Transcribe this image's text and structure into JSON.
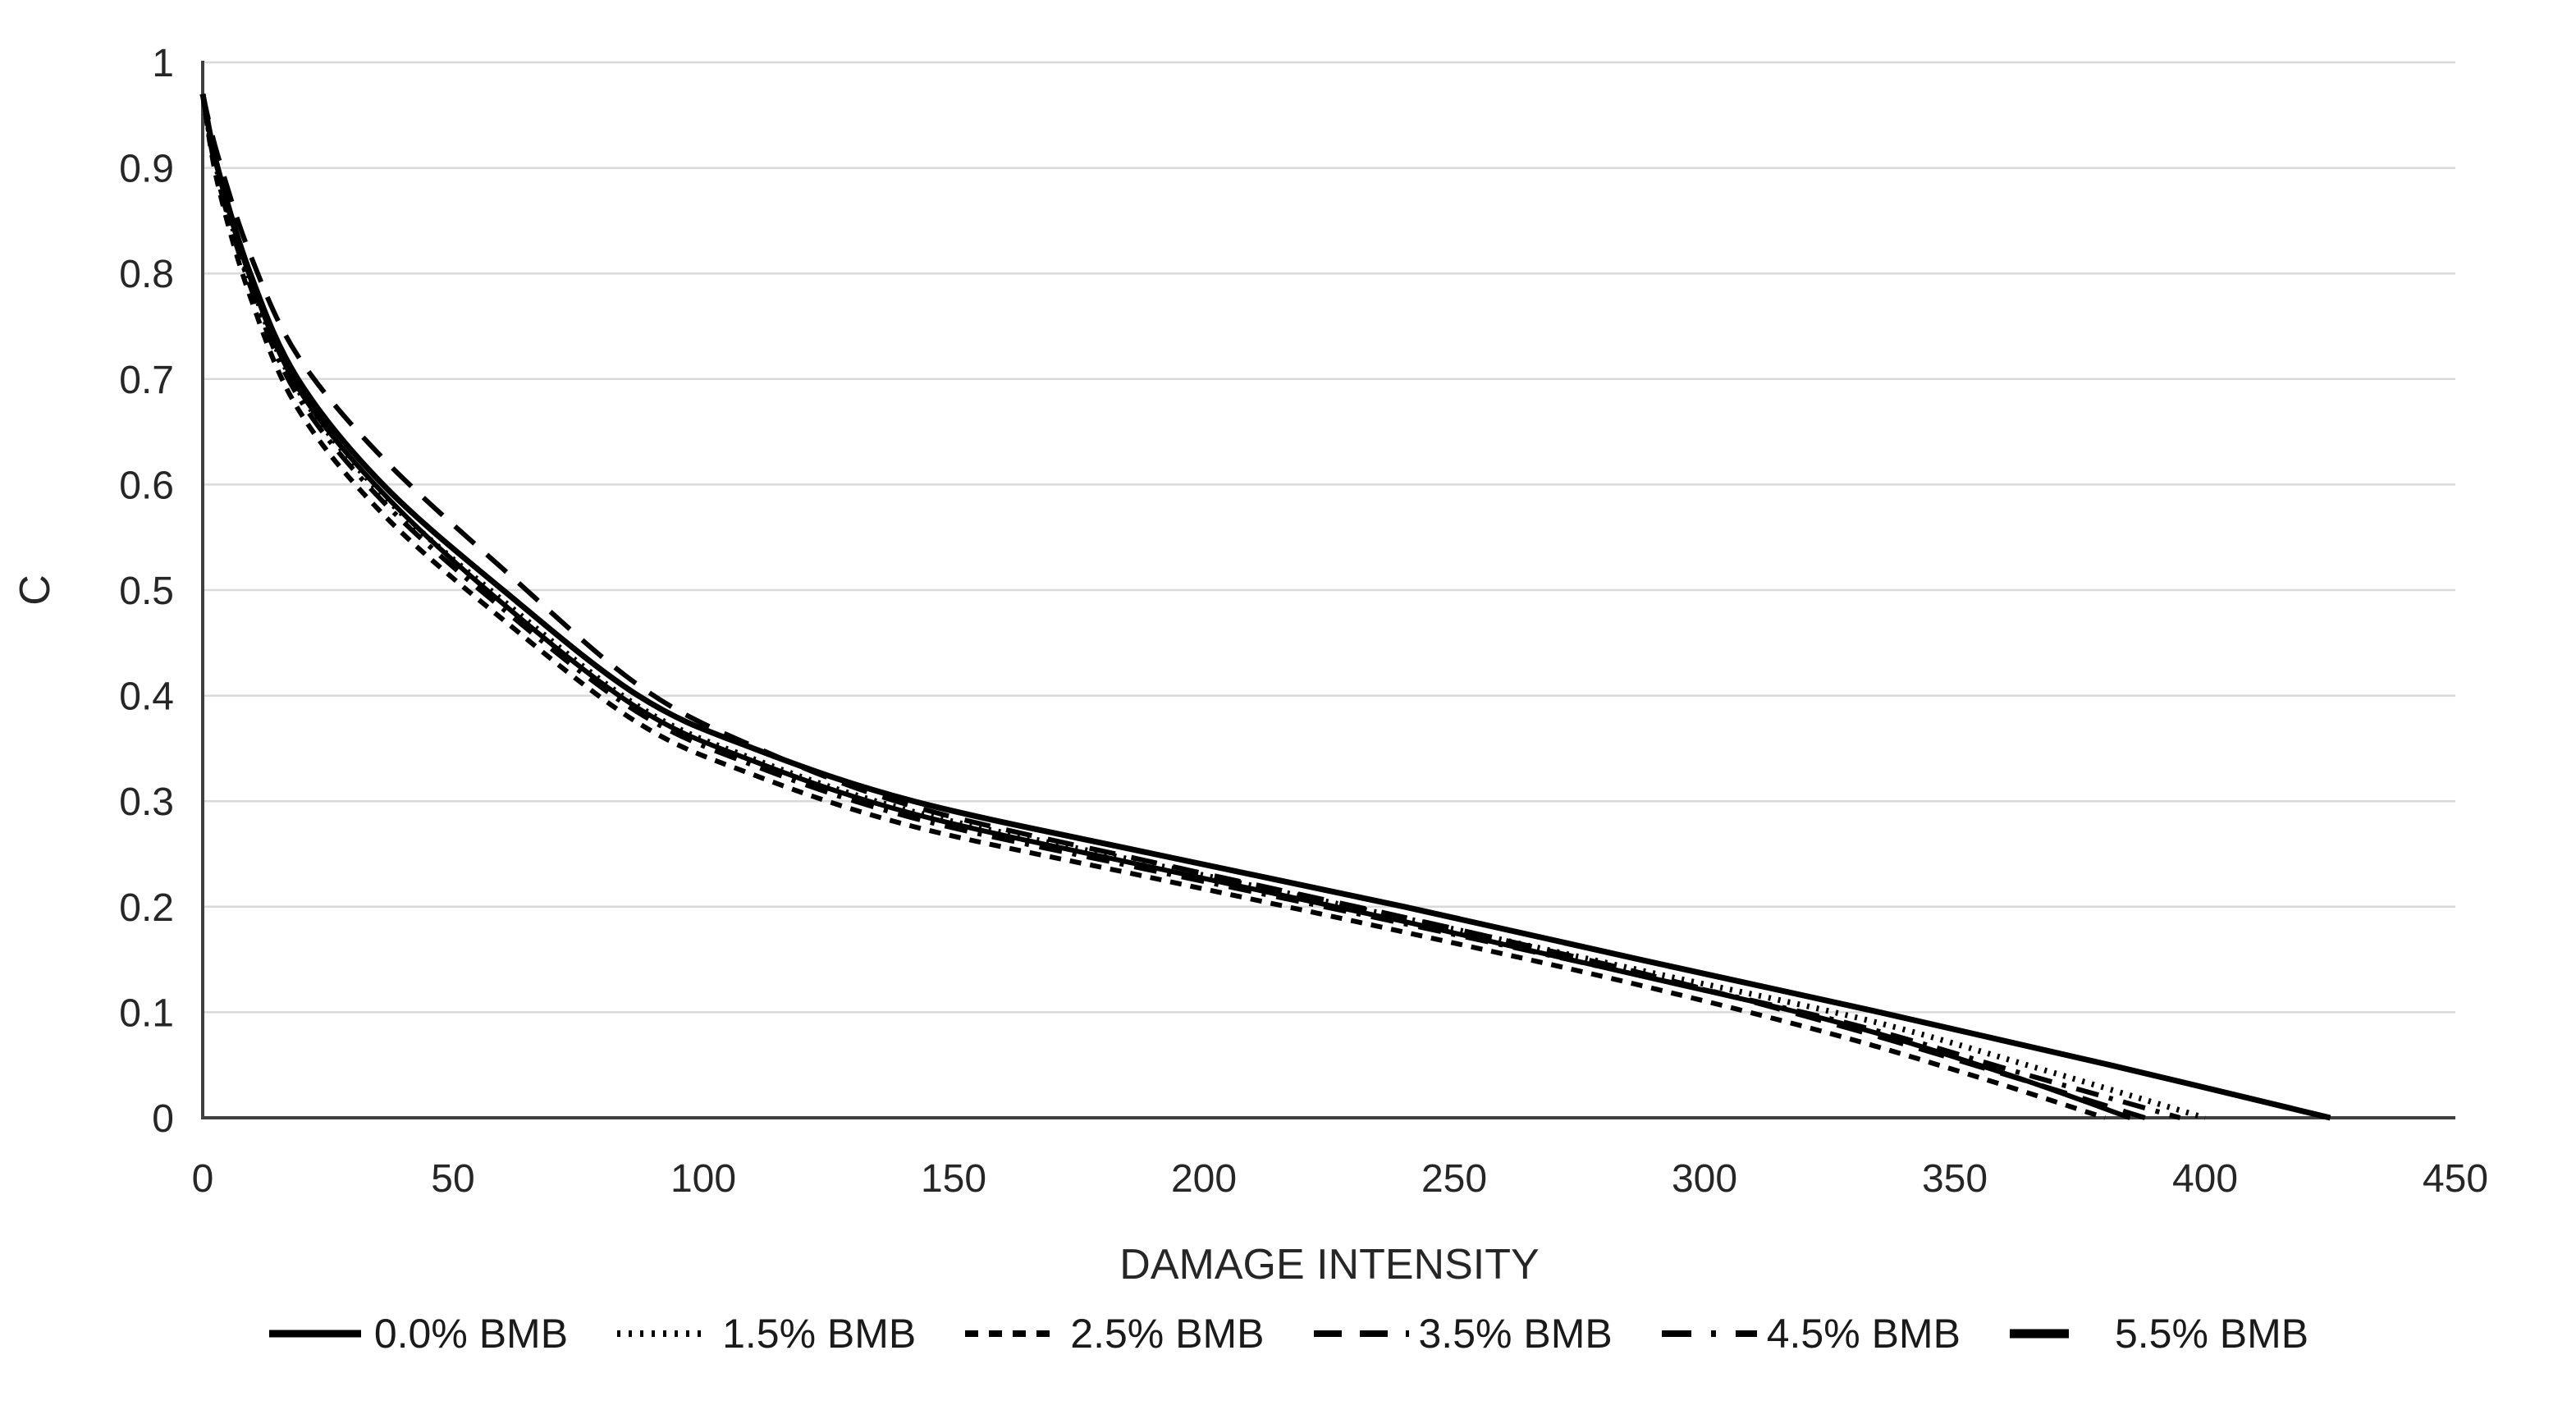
{
  "chart_data": {
    "type": "line",
    "title": "",
    "xlabel": "DAMAGE INTENSITY",
    "ylabel": "C",
    "xlim": [
      0,
      450
    ],
    "ylim": [
      0,
      1
    ],
    "grid": "horizontal",
    "legend_position": "bottom",
    "x_ticks": [
      {
        "value": 0,
        "label": "0"
      },
      {
        "value": 50,
        "label": "50"
      },
      {
        "value": 100,
        "label": "100"
      },
      {
        "value": 150,
        "label": "150"
      },
      {
        "value": 200,
        "label": "200"
      },
      {
        "value": 250,
        "label": "250"
      },
      {
        "value": 300,
        "label": "300"
      },
      {
        "value": 350,
        "label": "350"
      },
      {
        "value": 400,
        "label": "400"
      },
      {
        "value": 450,
        "label": "450"
      }
    ],
    "y_ticks": [
      {
        "value": 0,
        "label": "0"
      },
      {
        "value": 0.1,
        "label": "0.1"
      },
      {
        "value": 0.2,
        "label": "0.2"
      },
      {
        "value": 0.3,
        "label": "0.3"
      },
      {
        "value": 0.4,
        "label": "0.4"
      },
      {
        "value": 0.5,
        "label": "0.5"
      },
      {
        "value": 0.6,
        "label": "0.6"
      },
      {
        "value": 0.7,
        "label": "0.7"
      },
      {
        "value": 0.8,
        "label": "0.8"
      },
      {
        "value": 0.9,
        "label": "0.9"
      },
      {
        "value": 1,
        "label": "1"
      }
    ],
    "series": [
      {
        "name": "3.5% BMB",
        "line_style": "long-dash",
        "dash": "32 20",
        "width": 6,
        "swatch": {
          "dash": "34 22",
          "width": 8,
          "length": 116
        },
        "points": [
          [
            0,
            0.97
          ],
          [
            3,
            0.912
          ],
          [
            9.5,
            0.818
          ],
          [
            19,
            0.722
          ],
          [
            36,
            0.625
          ],
          [
            60,
            0.52
          ],
          [
            87,
            0.41
          ],
          [
            110,
            0.352
          ],
          [
            142,
            0.295
          ],
          [
            190,
            0.242
          ],
          [
            240,
            0.19
          ],
          [
            285,
            0.14
          ],
          [
            325,
            0.09
          ],
          [
            358,
            0.044
          ],
          [
            388,
            0.0
          ]
        ]
      },
      {
        "name": "2.5% BMB",
        "line_style": "dash",
        "dash": "14 11",
        "width": 6,
        "swatch": {
          "dash": "16 13",
          "width": 8,
          "length": 110
        },
        "points": [
          [
            0,
            0.97
          ],
          [
            3,
            0.885
          ],
          [
            9.5,
            0.778
          ],
          [
            19,
            0.672
          ],
          [
            36,
            0.572
          ],
          [
            60,
            0.472
          ],
          [
            87,
            0.374
          ],
          [
            110,
            0.325
          ],
          [
            142,
            0.276
          ],
          [
            190,
            0.227
          ],
          [
            240,
            0.176
          ],
          [
            285,
            0.128
          ],
          [
            325,
            0.08
          ],
          [
            355,
            0.038
          ],
          [
            380,
            0.0
          ]
        ]
      },
      {
        "name": "1.5% BMB",
        "line_style": "dotted",
        "dash": "3 9",
        "width": 7,
        "swatch": {
          "dash": "4 10",
          "width": 8,
          "length": 104
        },
        "points": [
          [
            0,
            0.97
          ],
          [
            3,
            0.895
          ],
          [
            9.5,
            0.793
          ],
          [
            19,
            0.69
          ],
          [
            36,
            0.59
          ],
          [
            60,
            0.49
          ],
          [
            87,
            0.39
          ],
          [
            110,
            0.34
          ],
          [
            142,
            0.29
          ],
          [
            190,
            0.24
          ],
          [
            240,
            0.189
          ],
          [
            287,
            0.14
          ],
          [
            333,
            0.092
          ],
          [
            368,
            0.045
          ],
          [
            400,
            0.0
          ]
        ]
      },
      {
        "name": "4.5% BMB",
        "line_style": "dash-dot",
        "dash": "28 13 5 13",
        "width": 6,
        "swatch": {
          "dash": "36 24 6 24",
          "width": 8,
          "length": 116
        },
        "points": [
          [
            0,
            0.97
          ],
          [
            3,
            0.89
          ],
          [
            9.5,
            0.788
          ],
          [
            19,
            0.684
          ],
          [
            36,
            0.584
          ],
          [
            60,
            0.482
          ],
          [
            87,
            0.384
          ],
          [
            110,
            0.334
          ],
          [
            142,
            0.284
          ],
          [
            190,
            0.234
          ],
          [
            240,
            0.184
          ],
          [
            287,
            0.135
          ],
          [
            330,
            0.088
          ],
          [
            365,
            0.04
          ],
          [
            395,
            0.0
          ]
        ]
      },
      {
        "name": "5.5% BMB",
        "line_style": "solid",
        "dash": "",
        "width": 6,
        "swatch": {
          "dash": "",
          "width": 11,
          "length": 72
        },
        "points": [
          [
            0,
            0.97
          ],
          [
            3,
            0.898
          ],
          [
            9.5,
            0.796
          ],
          [
            19,
            0.692
          ],
          [
            36,
            0.592
          ],
          [
            60,
            0.487
          ],
          [
            87,
            0.388
          ],
          [
            110,
            0.338
          ],
          [
            142,
            0.288
          ],
          [
            190,
            0.237
          ],
          [
            240,
            0.186
          ],
          [
            285,
            0.137
          ],
          [
            327,
            0.09
          ],
          [
            360,
            0.042
          ],
          [
            385,
            0.0
          ]
        ]
      },
      {
        "name": "0.0% BMB",
        "line_style": "solid",
        "dash": "",
        "width": 7,
        "swatch": {
          "dash": "",
          "width": 9,
          "length": 112
        },
        "points": [
          [
            0,
            0.97
          ],
          [
            3,
            0.9
          ],
          [
            9.5,
            0.8
          ],
          [
            19,
            0.7
          ],
          [
            36,
            0.6
          ],
          [
            60,
            0.5
          ],
          [
            87,
            0.4
          ],
          [
            110,
            0.35
          ],
          [
            142,
            0.3
          ],
          [
            190,
            0.25
          ],
          [
            240,
            0.2
          ],
          [
            287,
            0.15
          ],
          [
            335,
            0.1
          ],
          [
            381,
            0.05
          ],
          [
            425,
            0.0
          ]
        ]
      }
    ],
    "legend_order": [
      "0.0% BMB",
      "1.5% BMB",
      "2.5% BMB",
      "3.5% BMB",
      "4.5% BMB",
      "5.5% BMB"
    ]
  },
  "colors": {
    "line": "#000000",
    "grid": "#d9d9d9",
    "axis": "#404040",
    "text": "#262626",
    "background": "#ffffff"
  }
}
